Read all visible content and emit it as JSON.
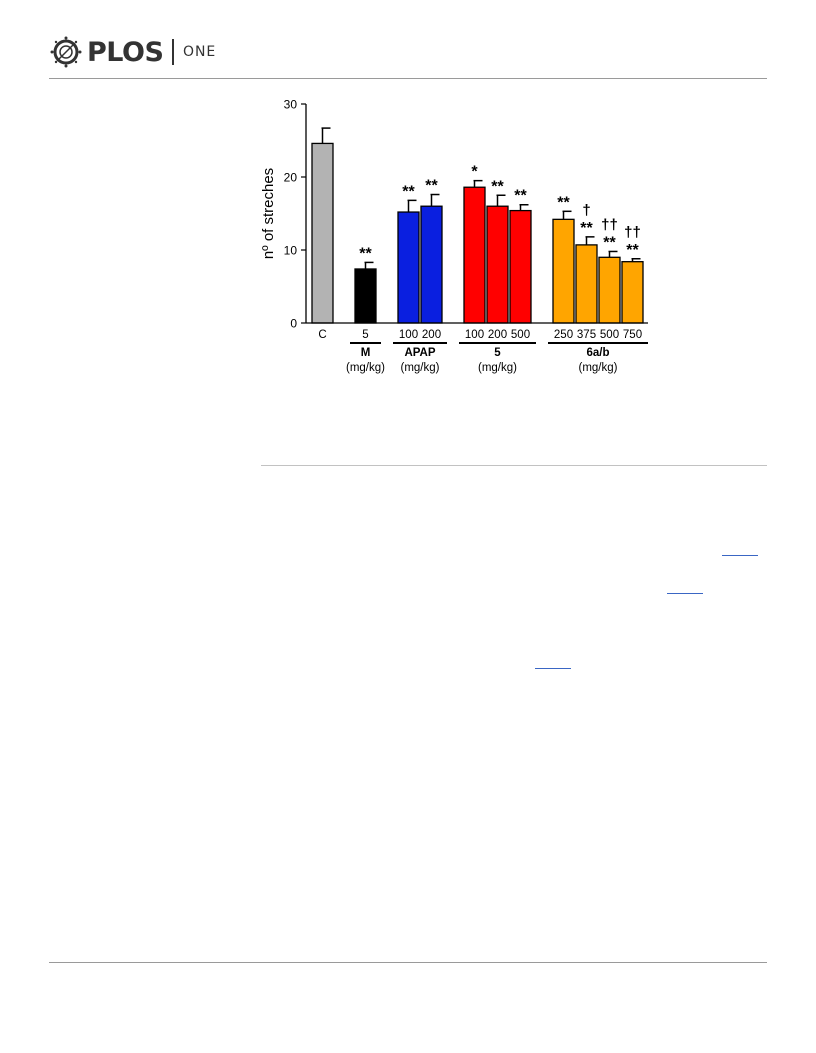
{
  "header": {
    "brand": "PLOS",
    "journal": "ONE"
  },
  "chart_data": {
    "type": "bar",
    "ylabel": "nº of streches",
    "ylim": [
      0,
      30
    ],
    "yticks": [
      0,
      10,
      20,
      30
    ],
    "bars": [
      {
        "label": "C",
        "group": 0,
        "value": 24.6,
        "error": 2.1,
        "color": "#b3b3b3",
        "annotation": ""
      },
      {
        "label": "5",
        "group": 1,
        "value": 7.4,
        "error": 0.9,
        "color": "#000000",
        "annotation": "**"
      },
      {
        "label": "100",
        "group": 2,
        "value": 15.2,
        "error": 1.6,
        "color": "#0a1fe0",
        "annotation": "**"
      },
      {
        "label": "200",
        "group": 2,
        "value": 16.0,
        "error": 1.6,
        "color": "#0a1fe0",
        "annotation": "**"
      },
      {
        "label": "100",
        "group": 3,
        "value": 18.6,
        "error": 0.9,
        "color": "#ff0000",
        "annotation": "*"
      },
      {
        "label": "200",
        "group": 3,
        "value": 16.0,
        "error": 1.5,
        "color": "#ff0000",
        "annotation": "**"
      },
      {
        "label": "500",
        "group": 3,
        "value": 15.4,
        "error": 0.8,
        "color": "#ff0000",
        "annotation": "**"
      },
      {
        "label": "250",
        "group": 4,
        "value": 14.2,
        "error": 1.1,
        "color": "#ffa500",
        "annotation": "**"
      },
      {
        "label": "375",
        "group": 4,
        "value": 10.7,
        "error": 1.1,
        "color": "#ffa500",
        "annotation": "**",
        "annotation2": "†"
      },
      {
        "label": "500",
        "group": 4,
        "value": 9.0,
        "error": 0.8,
        "color": "#ffa500",
        "annotation": "**",
        "annotation2": "††"
      },
      {
        "label": "750",
        "group": 4,
        "value": 8.4,
        "error": 0.4,
        "color": "#ffa500",
        "annotation": "**",
        "annotation2": "††"
      }
    ],
    "groups": [
      {
        "name": "M",
        "unit": "(mg/kg)"
      },
      {
        "name": "APAP",
        "unit": "(mg/kg)"
      },
      {
        "name": "5",
        "unit": "(mg/kg)"
      },
      {
        "name": "6a/b",
        "unit": "(mg/kg)"
      }
    ],
    "legend": "none",
    "grid": false
  }
}
